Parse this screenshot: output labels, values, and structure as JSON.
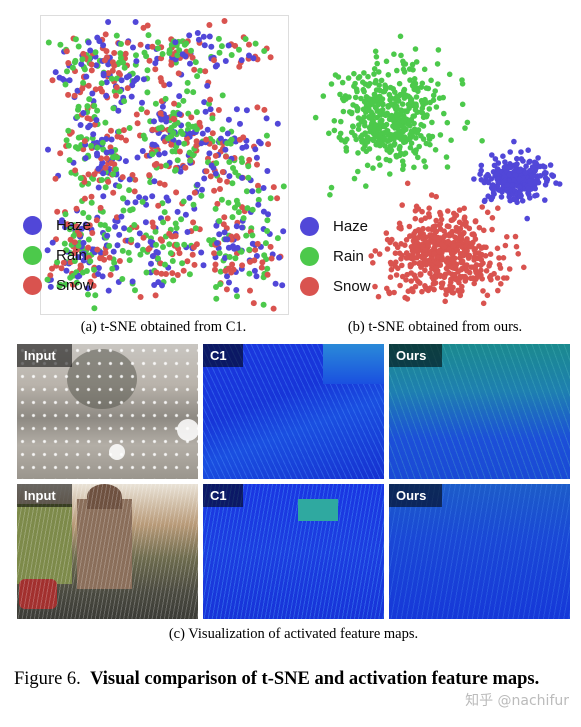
{
  "legend_a": [
    {
      "label": "Haze",
      "color": "#5147d8"
    },
    {
      "label": "Rain",
      "color": "#4cc94b"
    },
    {
      "label": "Snow",
      "color": "#d9534f"
    }
  ],
  "legend_b": [
    {
      "label": "Haze",
      "color": "#5147d8"
    },
    {
      "label": "Rain",
      "color": "#4cc94b"
    },
    {
      "label": "Snow",
      "color": "#d9534f"
    }
  ],
  "caption_a": "(a) t-SNE obtained from C1.",
  "caption_b": "(b) t-SNE obtained from ours.",
  "caption_c": "(c) Visualization of activated feature maps.",
  "tiles": {
    "r1c1": "Input",
    "r1c2": "C1",
    "r1c3": "Ours",
    "r2c1": "Input",
    "r2c2": "C1",
    "r2c3": "Ours"
  },
  "figure": {
    "prefix": "Figure 6.",
    "title": "Visual comparison of t-SNE and activation feature maps."
  },
  "watermark": "知乎 @nachifur"
}
